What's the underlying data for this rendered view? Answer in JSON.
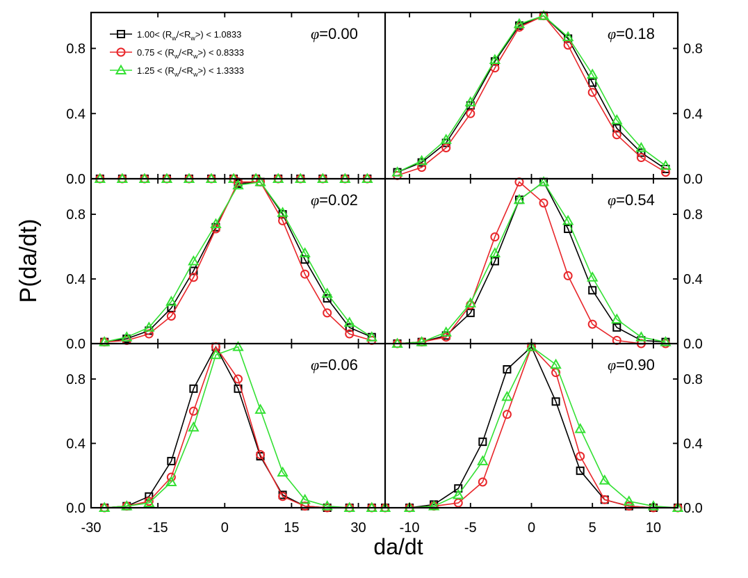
{
  "chart_data": {
    "type": "line",
    "ylabel": "P(da/dt)",
    "xlabel": "da/dt",
    "legend": {
      "placement": "top-left of top-left panel",
      "entries": [
        {
          "name": "1.00< (R_w/<R_w>) < 1.0833",
          "prefix": "1.00< (R",
          "mid": "/<R",
          "suffix": ">) < 1.0833",
          "sub": "w",
          "color": "#000000",
          "marker": "square"
        },
        {
          "name": "0.75 < (R_w/<R_w>) < 0.8333",
          "prefix": "0.75 < (R",
          "mid": "/<R",
          "suffix": ">) < 0.8333",
          "sub": "w",
          "color": "#e8262a",
          "marker": "circle"
        },
        {
          "name": "1.25 < (R_w/<R_w>) < 1.3333",
          "prefix": "1.25 < (R",
          "mid": "/<R",
          "suffix": ">) < 1.3333",
          "sub": "w",
          "color": "#33e033",
          "marker": "triangle"
        }
      ]
    },
    "y_ticks": [
      "0.0",
      "0.4",
      "0.8"
    ],
    "ylim": [
      0,
      1.02
    ],
    "left_xlim": [
      -30,
      36
    ],
    "right_xlim": [
      -12,
      12
    ],
    "left_x_ticks": [
      "-30",
      "-15",
      "0",
      "15",
      "30"
    ],
    "right_x_ticks": [
      "-10",
      "-5",
      "0",
      "5",
      "10"
    ],
    "panels": [
      {
        "phi": "=0.00",
        "side": "left",
        "row": 0,
        "series": [
          {
            "x": [
              -28,
              -23,
              -18,
              -13,
              -8,
              -3,
              2,
              7,
              12,
              17,
              22,
              27,
              32
            ],
            "values": [
              0,
              0,
              0,
              0,
              0,
              0,
              0,
              0,
              0,
              0,
              0,
              0,
              0
            ]
          },
          {
            "x": [
              -28,
              -23,
              -18,
              -13,
              -8,
              -3,
              2,
              7,
              12,
              17,
              22,
              27,
              32
            ],
            "values": [
              0,
              0,
              0,
              0,
              0,
              0,
              0,
              0,
              0,
              0,
              0,
              0,
              0
            ]
          },
          {
            "x": [
              -28,
              -23,
              -18,
              -13,
              -8,
              -3,
              2,
              7,
              12,
              17,
              22,
              27,
              32
            ],
            "values": [
              0,
              0,
              0,
              0,
              0,
              0,
              0,
              0,
              0,
              0,
              0,
              0,
              0
            ]
          }
        ]
      },
      {
        "phi": "=0.18",
        "side": "right",
        "row": 0,
        "series": [
          {
            "x": [
              -11,
              -9,
              -7,
              -5,
              -3,
              -1,
              1,
              3,
              5,
              7,
              9,
              11
            ],
            "values": [
              0.04,
              0.1,
              0.22,
              0.45,
              0.72,
              0.94,
              1.0,
              0.86,
              0.59,
              0.31,
              0.16,
              0.06
            ]
          },
          {
            "x": [
              -11,
              -9,
              -7,
              -5,
              -3,
              -1,
              1,
              3,
              5,
              7,
              9,
              11
            ],
            "values": [
              0.02,
              0.07,
              0.19,
              0.4,
              0.68,
              0.93,
              1.0,
              0.82,
              0.53,
              0.27,
              0.13,
              0.04
            ]
          },
          {
            "x": [
              -11,
              -9,
              -7,
              -5,
              -3,
              -1,
              1,
              3,
              5,
              7,
              9,
              11
            ],
            "values": [
              0.04,
              0.11,
              0.24,
              0.47,
              0.73,
              0.95,
              1.0,
              0.87,
              0.64,
              0.36,
              0.19,
              0.08
            ]
          }
        ]
      },
      {
        "phi": "=0.02",
        "side": "left",
        "row": 1,
        "series": [
          {
            "x": [
              -27,
              -22,
              -17,
              -12,
              -7,
              -2,
              3,
              8,
              13,
              18,
              23,
              28,
              33
            ],
            "values": [
              0.01,
              0.03,
              0.08,
              0.22,
              0.45,
              0.72,
              0.99,
              1.0,
              0.8,
              0.52,
              0.28,
              0.1,
              0.04
            ]
          },
          {
            "x": [
              -27,
              -22,
              -17,
              -12,
              -7,
              -2,
              3,
              8,
              13,
              18,
              23,
              28,
              33
            ],
            "values": [
              0.01,
              0.02,
              0.06,
              0.17,
              0.41,
              0.71,
              1.0,
              1.0,
              0.76,
              0.43,
              0.19,
              0.06,
              0.02
            ]
          },
          {
            "x": [
              -27,
              -22,
              -17,
              -12,
              -7,
              -2,
              3,
              8,
              13,
              18,
              23,
              28,
              33
            ],
            "values": [
              0.01,
              0.04,
              0.1,
              0.26,
              0.51,
              0.74,
              0.98,
              1.0,
              0.81,
              0.56,
              0.31,
              0.13,
              0.04
            ]
          }
        ]
      },
      {
        "phi": "=0.54",
        "side": "right",
        "row": 1,
        "series": [
          {
            "x": [
              -11,
              -9,
              -7,
              -5,
              -3,
              -1,
              1,
              3,
              5,
              7,
              9,
              11
            ],
            "values": [
              0,
              0.01,
              0.05,
              0.19,
              0.51,
              0.89,
              1.0,
              0.71,
              0.33,
              0.1,
              0.02,
              0.01
            ]
          },
          {
            "x": [
              -11,
              -9,
              -7,
              -5,
              -3,
              -1,
              1,
              3,
              5,
              7,
              9,
              11
            ],
            "values": [
              0,
              0.01,
              0.04,
              0.24,
              0.66,
              1.0,
              0.87,
              0.42,
              0.12,
              0.02,
              0,
              0
            ]
          },
          {
            "x": [
              -11,
              -9,
              -7,
              -5,
              -3,
              -1,
              1,
              3,
              5,
              7,
              9,
              11
            ],
            "values": [
              0,
              0.01,
              0.07,
              0.25,
              0.56,
              0.89,
              1.0,
              0.76,
              0.41,
              0.15,
              0.04,
              0.01
            ]
          }
        ]
      },
      {
        "phi": "=0.06",
        "side": "left",
        "row": 2,
        "series": [
          {
            "x": [
              -27,
              -22,
              -17,
              -12,
              -7,
              -2,
              3,
              8,
              13,
              18,
              23,
              28,
              33
            ],
            "values": [
              0,
              0.01,
              0.07,
              0.29,
              0.74,
              1.0,
              0.74,
              0.32,
              0.08,
              0.01,
              0,
              0,
              0
            ]
          },
          {
            "x": [
              -27,
              -22,
              -17,
              -12,
              -7,
              -2,
              3,
              8,
              13,
              18,
              23,
              28,
              33
            ],
            "values": [
              0,
              0.01,
              0.04,
              0.19,
              0.6,
              1.0,
              0.8,
              0.33,
              0.07,
              0.01,
              0,
              0,
              0
            ]
          },
          {
            "x": [
              -27,
              -22,
              -17,
              -12,
              -7,
              -2,
              3,
              8,
              13,
              18,
              23,
              28,
              33
            ],
            "values": [
              0,
              0.01,
              0.03,
              0.16,
              0.5,
              0.95,
              1.0,
              0.61,
              0.22,
              0.05,
              0.01,
              0,
              0
            ]
          }
        ]
      },
      {
        "phi": "=0.90",
        "side": "right",
        "row": 2,
        "series": [
          {
            "x": [
              -12,
              -10,
              -8,
              -6,
              -4,
              -2,
              0,
              2,
              4,
              6,
              8,
              10,
              12
            ],
            "values": [
              0,
              0,
              0.02,
              0.12,
              0.41,
              0.86,
              1.0,
              0.66,
              0.23,
              0.05,
              0.01,
              0,
              0
            ]
          },
          {
            "x": [
              -12,
              -10,
              -8,
              -6,
              -4,
              -2,
              0,
              2,
              4,
              6,
              8,
              10,
              12
            ],
            "values": [
              0,
              0,
              0.01,
              0.03,
              0.16,
              0.58,
              1.0,
              0.84,
              0.32,
              0.05,
              0.01,
              0,
              0
            ]
          },
          {
            "x": [
              -12,
              -10,
              -8,
              -6,
              -4,
              -2,
              0,
              2,
              4,
              6,
              8,
              10,
              12
            ],
            "values": [
              0,
              0,
              0.01,
              0.08,
              0.29,
              0.69,
              1.0,
              0.89,
              0.49,
              0.17,
              0.04,
              0.01,
              0
            ]
          }
        ]
      }
    ]
  }
}
